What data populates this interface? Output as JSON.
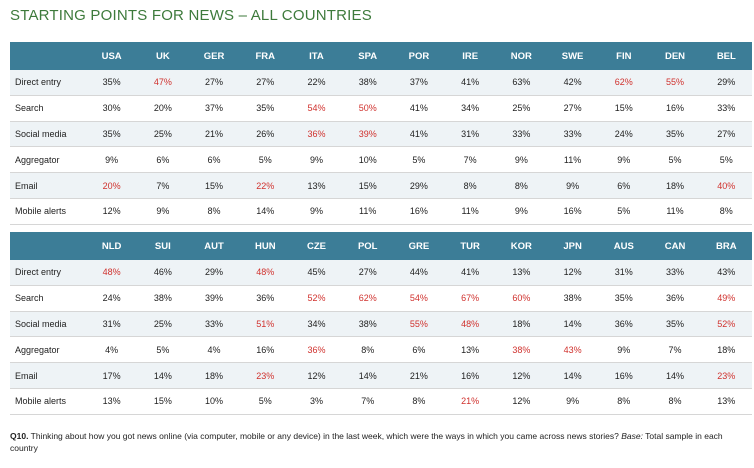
{
  "title": "STARTING POINTS FOR NEWS – ALL COUNTRIES",
  "colors": {
    "header_bg": "#3c7d97",
    "highlight": "#d0312d",
    "title": "#3d7a3b"
  },
  "table1": {
    "columns": [
      "USA",
      "UK",
      "GER",
      "FRA",
      "ITA",
      "SPA",
      "POR",
      "IRE",
      "NOR",
      "SWE",
      "FIN",
      "DEN",
      "BEL"
    ],
    "rows": [
      {
        "label": "Direct entry",
        "values": [
          "35%",
          "47%",
          "27%",
          "27%",
          "22%",
          "38%",
          "37%",
          "41%",
          "63%",
          "42%",
          "62%",
          "55%",
          "29%"
        ],
        "highlight": [
          false,
          true,
          false,
          false,
          false,
          false,
          false,
          false,
          false,
          false,
          true,
          true,
          false
        ]
      },
      {
        "label": "Search",
        "values": [
          "30%",
          "20%",
          "37%",
          "35%",
          "54%",
          "50%",
          "41%",
          "34%",
          "25%",
          "27%",
          "15%",
          "16%",
          "33%"
        ],
        "highlight": [
          false,
          false,
          false,
          false,
          true,
          true,
          false,
          false,
          false,
          false,
          false,
          false,
          false
        ]
      },
      {
        "label": "Social media",
        "values": [
          "35%",
          "25%",
          "21%",
          "26%",
          "36%",
          "39%",
          "41%",
          "31%",
          "33%",
          "33%",
          "24%",
          "35%",
          "27%"
        ],
        "highlight": [
          false,
          false,
          false,
          false,
          true,
          true,
          false,
          false,
          false,
          false,
          false,
          false,
          false
        ]
      },
      {
        "label": "Aggregator",
        "values": [
          "9%",
          "6%",
          "6%",
          "5%",
          "9%",
          "10%",
          "5%",
          "7%",
          "9%",
          "11%",
          "9%",
          "5%",
          "5%"
        ],
        "highlight": [
          false,
          false,
          false,
          false,
          false,
          false,
          false,
          false,
          false,
          false,
          false,
          false,
          false
        ]
      },
      {
        "label": "Email",
        "values": [
          "20%",
          "7%",
          "15%",
          "22%",
          "13%",
          "15%",
          "29%",
          "8%",
          "8%",
          "9%",
          "6%",
          "18%",
          "40%"
        ],
        "highlight": [
          true,
          false,
          false,
          true,
          false,
          false,
          false,
          false,
          false,
          false,
          false,
          false,
          true
        ]
      },
      {
        "label": "Mobile alerts",
        "values": [
          "12%",
          "9%",
          "8%",
          "14%",
          "9%",
          "11%",
          "16%",
          "11%",
          "9%",
          "16%",
          "5%",
          "11%",
          "8%"
        ],
        "highlight": [
          false,
          false,
          false,
          false,
          false,
          false,
          false,
          false,
          false,
          false,
          false,
          false,
          false
        ]
      }
    ]
  },
  "table2": {
    "columns": [
      "NLD",
      "SUI",
      "AUT",
      "HUN",
      "CZE",
      "POL",
      "GRE",
      "TUR",
      "KOR",
      "JPN",
      "AUS",
      "CAN",
      "BRA"
    ],
    "rows": [
      {
        "label": "Direct entry",
        "values": [
          "48%",
          "46%",
          "29%",
          "48%",
          "45%",
          "27%",
          "44%",
          "41%",
          "13%",
          "12%",
          "31%",
          "33%",
          "43%"
        ],
        "highlight": [
          true,
          false,
          false,
          true,
          false,
          false,
          false,
          false,
          false,
          false,
          false,
          false,
          false
        ]
      },
      {
        "label": "Search",
        "values": [
          "24%",
          "38%",
          "39%",
          "36%",
          "52%",
          "62%",
          "54%",
          "67%",
          "60%",
          "38%",
          "35%",
          "36%",
          "49%"
        ],
        "highlight": [
          false,
          false,
          false,
          false,
          true,
          true,
          true,
          true,
          true,
          false,
          false,
          false,
          true
        ]
      },
      {
        "label": "Social media",
        "values": [
          "31%",
          "25%",
          "33%",
          "51%",
          "34%",
          "38%",
          "55%",
          "48%",
          "18%",
          "14%",
          "36%",
          "35%",
          "52%"
        ],
        "highlight": [
          false,
          false,
          false,
          true,
          false,
          false,
          true,
          true,
          false,
          false,
          false,
          false,
          true
        ]
      },
      {
        "label": "Aggregator",
        "values": [
          "4%",
          "5%",
          "4%",
          "16%",
          "36%",
          "8%",
          "6%",
          "13%",
          "38%",
          "43%",
          "9%",
          "7%",
          "18%"
        ],
        "highlight": [
          false,
          false,
          false,
          false,
          true,
          false,
          false,
          false,
          true,
          true,
          false,
          false,
          false
        ]
      },
      {
        "label": "Email",
        "values": [
          "17%",
          "14%",
          "18%",
          "23%",
          "12%",
          "14%",
          "21%",
          "16%",
          "12%",
          "14%",
          "16%",
          "14%",
          "23%"
        ],
        "highlight": [
          false,
          false,
          false,
          true,
          false,
          false,
          false,
          false,
          false,
          false,
          false,
          false,
          true
        ]
      },
      {
        "label": "Mobile alerts",
        "values": [
          "13%",
          "15%",
          "10%",
          "5%",
          "3%",
          "7%",
          "8%",
          "21%",
          "12%",
          "9%",
          "8%",
          "8%",
          "13%"
        ],
        "highlight": [
          false,
          false,
          false,
          false,
          false,
          false,
          false,
          true,
          false,
          false,
          false,
          false,
          false
        ]
      }
    ]
  },
  "footnote": {
    "q_label": "Q10.",
    "question": " Thinking about how you got news online (via computer, mobile or any device) in the last week, which were the ways in which you came across news stories? ",
    "base_label": "Base:",
    "base_text": " Total sample in each country"
  }
}
